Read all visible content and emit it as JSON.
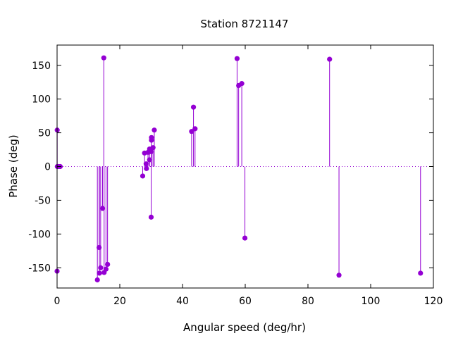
{
  "chart_data": {
    "type": "scatter",
    "style": "impulses-with-points",
    "title": "Station 8721147",
    "xlabel": "Angular speed (deg/hr)",
    "ylabel": "Phase (deg)",
    "xlim": [
      0,
      120
    ],
    "ylim": [
      -180,
      180
    ],
    "xticks": [
      0,
      20,
      40,
      60,
      80,
      100,
      120
    ],
    "yticks": [
      -150,
      -100,
      -50,
      0,
      50,
      100,
      150
    ],
    "zero_line": true,
    "grid": false,
    "color": "#9400d3",
    "series": [
      {
        "points": [
          {
            "x": 0.0,
            "y": -155
          },
          {
            "x": 0.04,
            "y": 54
          },
          {
            "x": 0.08,
            "y": 0
          },
          {
            "x": 0.5,
            "y": 0
          },
          {
            "x": 1.0,
            "y": 0
          },
          {
            "x": 12.85,
            "y": -168
          },
          {
            "x": 13.4,
            "y": -120
          },
          {
            "x": 13.5,
            "y": -158
          },
          {
            "x": 13.9,
            "y": -150
          },
          {
            "x": 14.5,
            "y": -62
          },
          {
            "x": 14.9,
            "y": 161
          },
          {
            "x": 15.0,
            "y": -157
          },
          {
            "x": 15.6,
            "y": -152
          },
          {
            "x": 16.1,
            "y": -145
          },
          {
            "x": 27.3,
            "y": -14
          },
          {
            "x": 27.9,
            "y": 20
          },
          {
            "x": 28.4,
            "y": 4
          },
          {
            "x": 28.5,
            "y": -3
          },
          {
            "x": 29.0,
            "y": 21
          },
          {
            "x": 29.5,
            "y": 26
          },
          {
            "x": 29.5,
            "y": 10
          },
          {
            "x": 30.0,
            "y": -75
          },
          {
            "x": 30.0,
            "y": 22
          },
          {
            "x": 30.1,
            "y": 43
          },
          {
            "x": 30.1,
            "y": 39
          },
          {
            "x": 30.6,
            "y": 28
          },
          {
            "x": 31.0,
            "y": 54
          },
          {
            "x": 42.9,
            "y": 52
          },
          {
            "x": 43.5,
            "y": 88
          },
          {
            "x": 44.0,
            "y": 56
          },
          {
            "x": 57.4,
            "y": 160
          },
          {
            "x": 57.9,
            "y": 120
          },
          {
            "x": 58.9,
            "y": 123
          },
          {
            "x": 59.9,
            "y": -106
          },
          {
            "x": 86.9,
            "y": 159
          },
          {
            "x": 89.9,
            "y": -161
          },
          {
            "x": 115.9,
            "y": -158
          }
        ]
      }
    ]
  }
}
